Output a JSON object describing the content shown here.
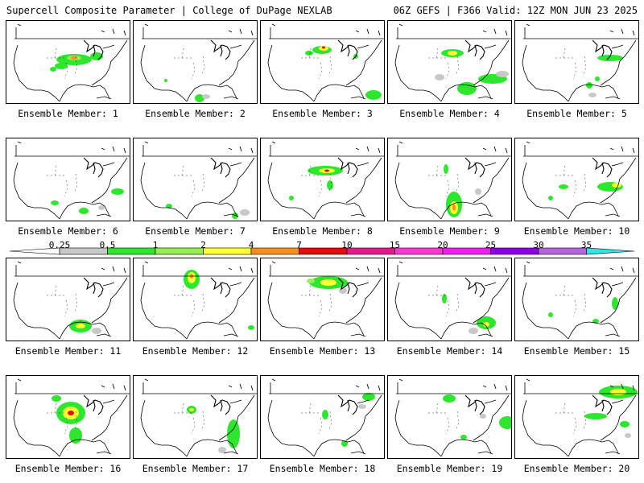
{
  "header": {
    "title": "Supercell Composite Parameter | College of DuPage NEXLAB",
    "run_info": "06Z GEFS | F366 Valid: 12Z MON JUN 23 2025"
  },
  "colorbar": {
    "labels": [
      "0.25",
      "0.5",
      "1",
      "2",
      "4",
      "7",
      "10",
      "15",
      "20",
      "25",
      "30",
      "35"
    ],
    "colors": [
      "#c8c8c8",
      "#2ee62e",
      "#96f050",
      "#ffff32",
      "#ff8c1e",
      "#e60a0a",
      "#e6198c",
      "#ff37d2",
      "#f01ef0",
      "#8c00e6",
      "#b464dc",
      "#32e6e6"
    ]
  },
  "panels": [
    {
      "label": "Ensemble Member: 1"
    },
    {
      "label": "Ensemble Member: 2"
    },
    {
      "label": "Ensemble Member: 3"
    },
    {
      "label": "Ensemble Member: 4"
    },
    {
      "label": "Ensemble Member: 5"
    },
    {
      "label": "Ensemble Member: 6"
    },
    {
      "label": "Ensemble Member: 7"
    },
    {
      "label": "Ensemble Member: 8"
    },
    {
      "label": "Ensemble Member: 9"
    },
    {
      "label": "Ensemble Member: 10"
    },
    {
      "label": "Ensemble Member: 11"
    },
    {
      "label": "Ensemble Member: 12"
    },
    {
      "label": "Ensemble Member: 13"
    },
    {
      "label": "Ensemble Member: 14"
    },
    {
      "label": "Ensemble Member: 15"
    },
    {
      "label": "Ensemble Member: 16"
    },
    {
      "label": "Ensemble Member: 17"
    },
    {
      "label": "Ensemble Member: 18"
    },
    {
      "label": "Ensemble Member: 19"
    },
    {
      "label": "Ensemble Member: 20"
    }
  ]
}
